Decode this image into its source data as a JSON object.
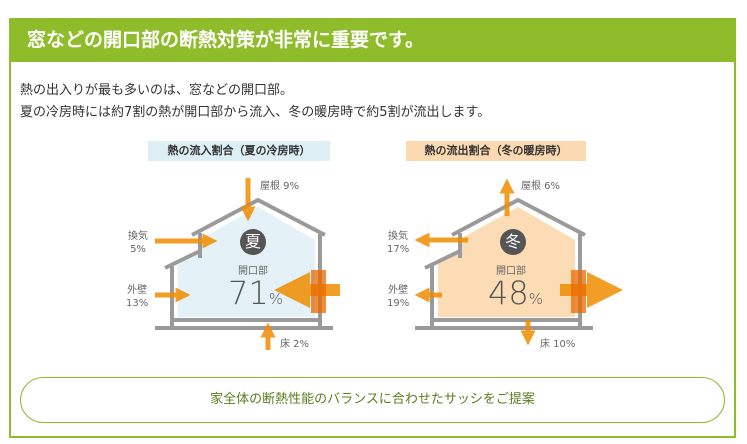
{
  "header": {
    "title": "窓などの開口部の断熱対策が非常に重要です。"
  },
  "intro": {
    "line1": "熱の出入りが最も多いのは、窓などの開口部。",
    "line2": "夏の冷房時には約7割の熱が開口部から流入、冬の暖房時で約5割が流出します。"
  },
  "summer": {
    "title": "熱の流入割合（夏の冷房時）",
    "season": "夏",
    "opening_label": "開口部",
    "opening_value": "71",
    "unit": "%",
    "roof": "屋根 9%",
    "vent_name": "換気",
    "vent_value": "5%",
    "wall_name": "外壁",
    "wall_value": "13%",
    "floor": "床 2%"
  },
  "winter": {
    "title": "熱の流出割合（冬の暖房時）",
    "season": "冬",
    "opening_label": "開口部",
    "opening_value": "48",
    "unit": "%",
    "roof": "屋根 6%",
    "vent_name": "換気",
    "vent_value": "17%",
    "wall_name": "外壁",
    "wall_value": "19%",
    "floor": "床 10%"
  },
  "cta": {
    "label": "家全体の断熱性能のバランスに合わせたサッシをご提案"
  },
  "colors": {
    "green": "#8fbc2b",
    "orange": "#f08c00",
    "summer_fill": "#e4f2f8",
    "winter_fill": "#fcdcb4"
  }
}
